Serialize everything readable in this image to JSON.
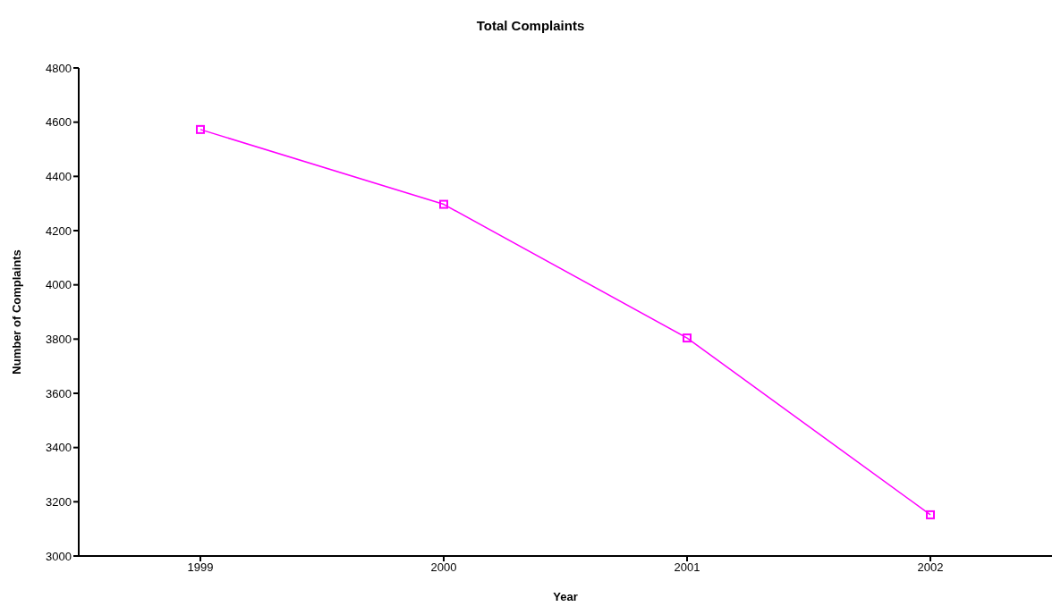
{
  "chart_data": {
    "type": "line",
    "title": "Total Complaints",
    "xlabel": "Year",
    "ylabel": "Number of Complaints",
    "categories": [
      "1999",
      "2000",
      "2001",
      "2002"
    ],
    "series": [
      {
        "color": "#ff00ff",
        "values": [
          4573,
          4297,
          3804,
          3152
        ]
      }
    ],
    "ylim": [
      3000,
      4800
    ],
    "yticks": [
      3000,
      3200,
      3400,
      3600,
      3800,
      4000,
      4200,
      4400,
      4600,
      4800
    ],
    "grid": false,
    "legend": false,
    "marker": "square",
    "line_style": "solid"
  }
}
